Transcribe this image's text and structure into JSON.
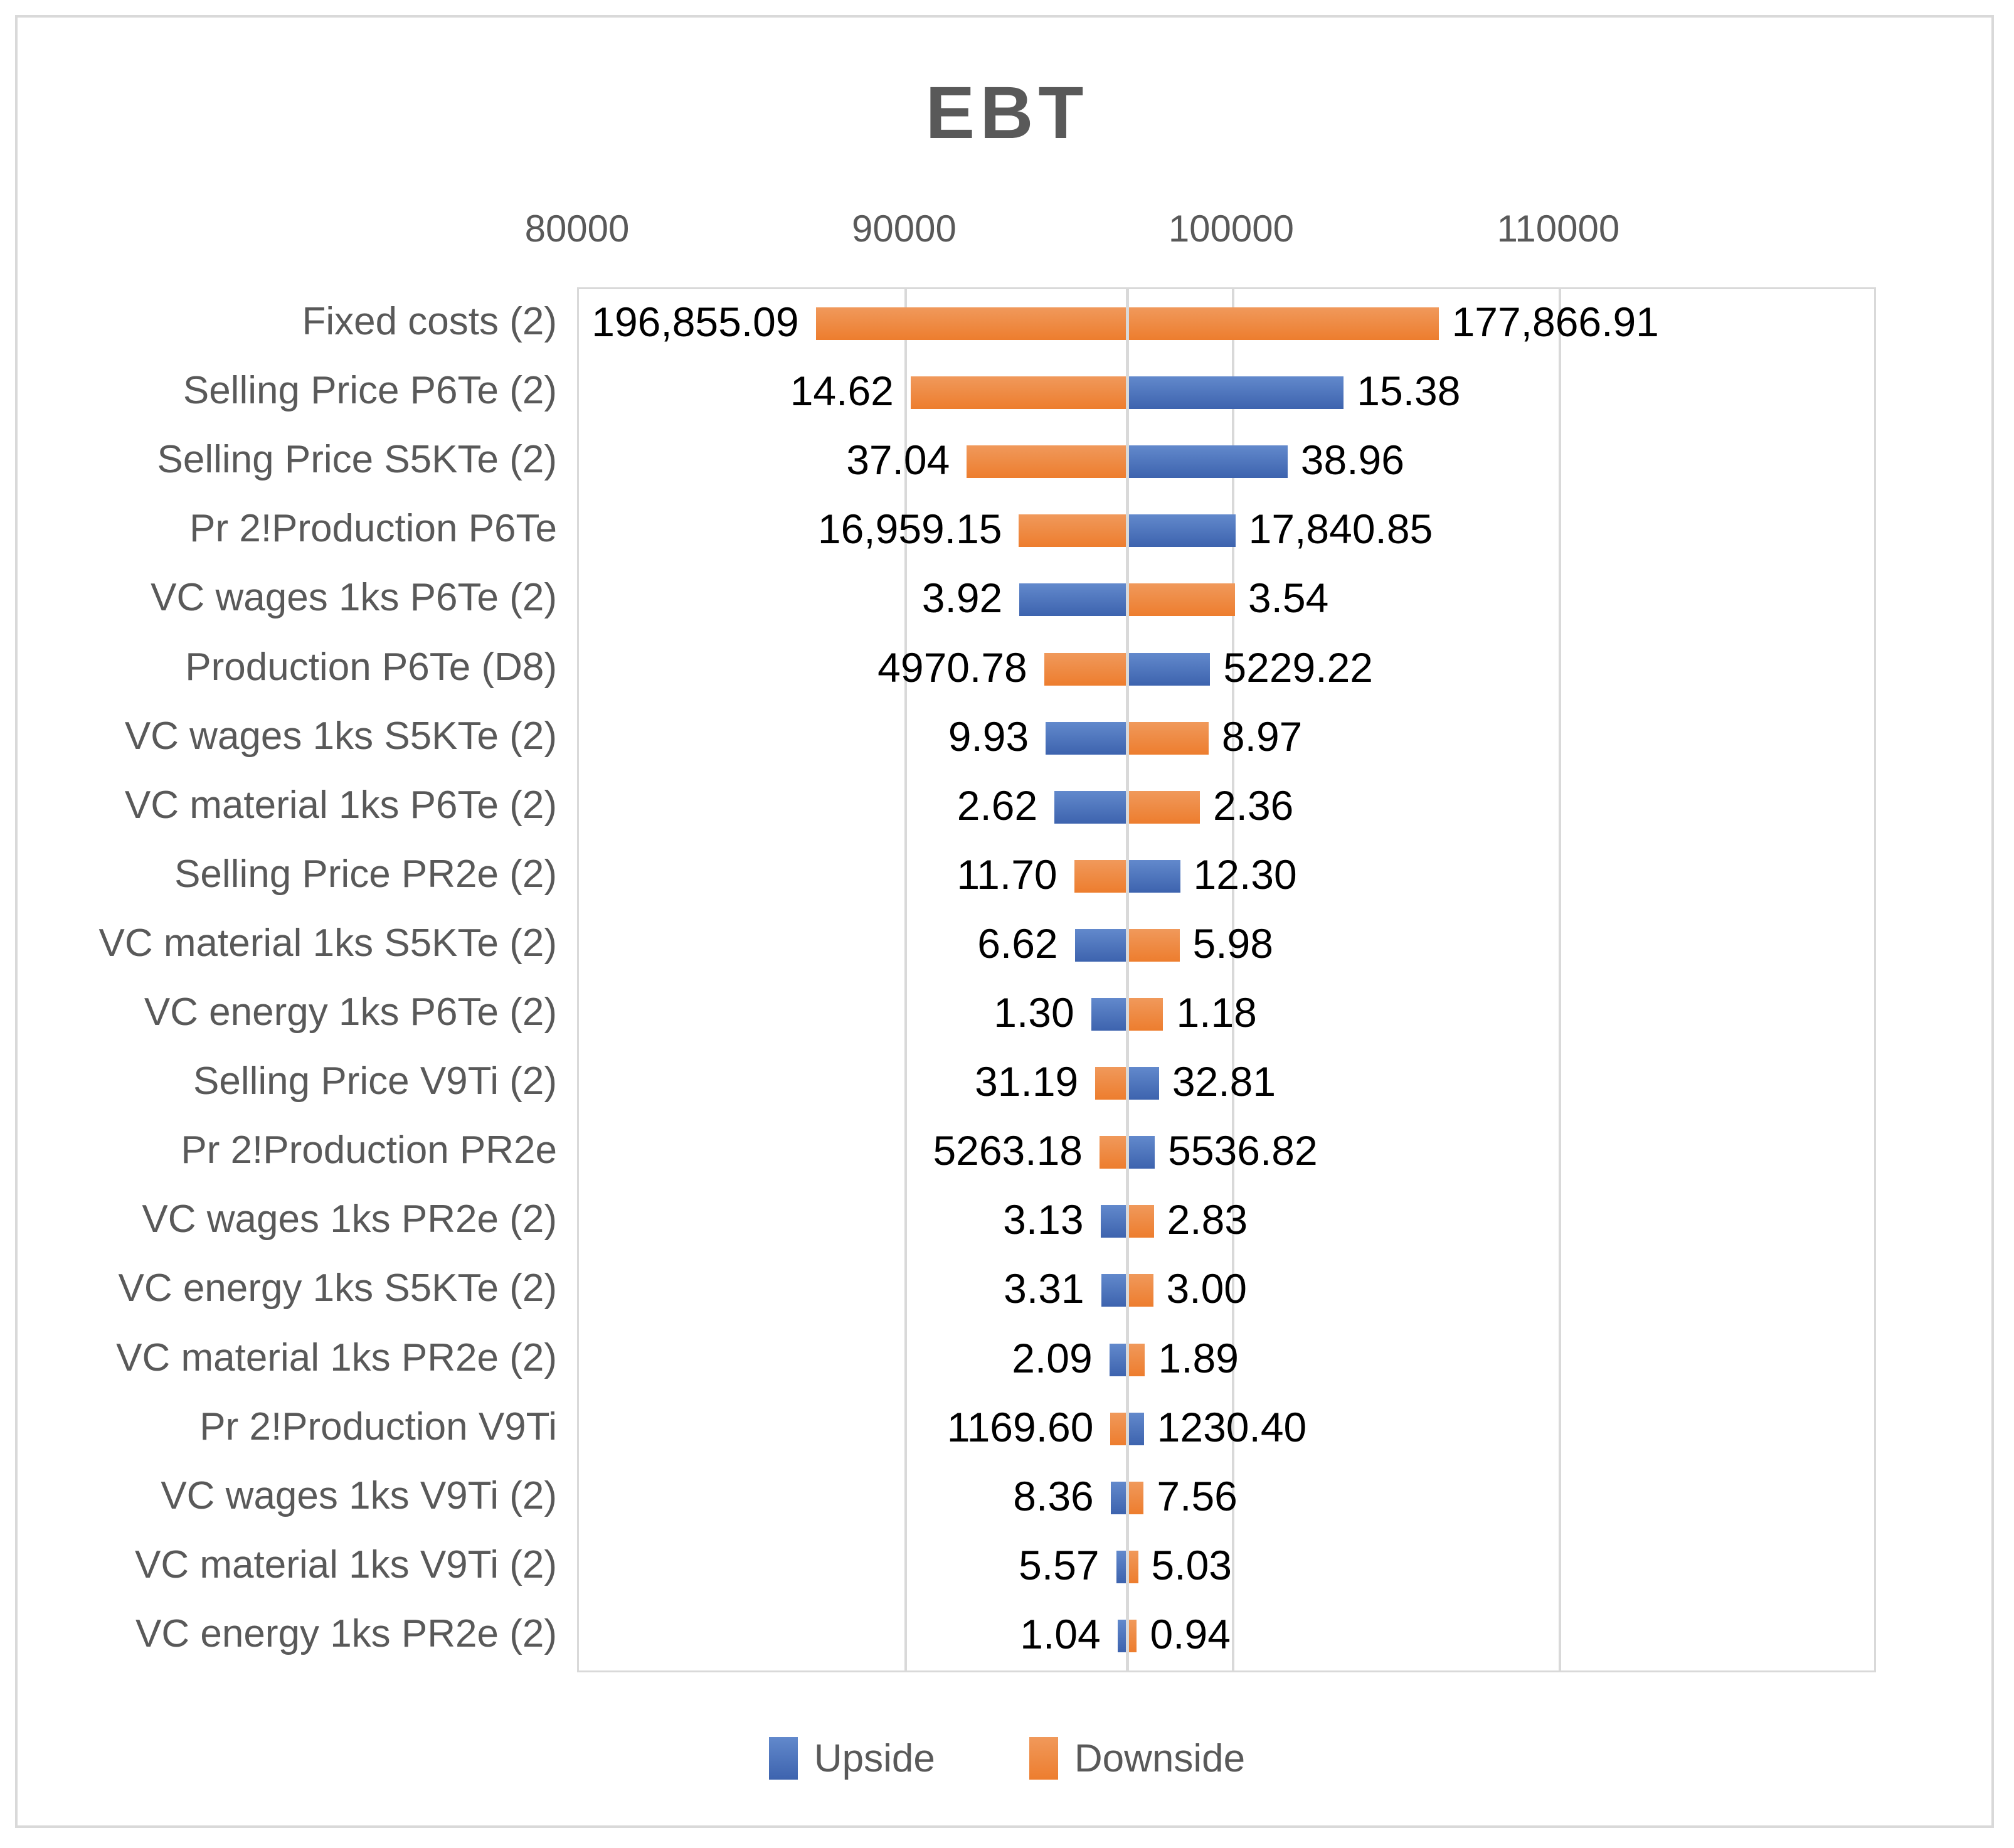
{
  "title": "EBT",
  "axis": {
    "min": 80000,
    "max": 119600,
    "ticks": [
      {
        "label": "80000",
        "value": 80000
      },
      {
        "label": "90000",
        "value": 90000
      },
      {
        "label": "100000",
        "value": 100000
      },
      {
        "label": "110000",
        "value": 110000
      }
    ],
    "gridlines": [
      90000,
      100000,
      110000
    ]
  },
  "legend": {
    "items": [
      {
        "label": "Upside",
        "series": "Upside"
      },
      {
        "label": "Downside",
        "series": "Downside"
      }
    ]
  },
  "colors": {
    "upside_top": "#6289cc",
    "upside_bottom": "#3d63ae",
    "downside_top": "#f0995b",
    "downside_bottom": "#ed7d2e",
    "gridline": "#d9d9d9",
    "axis_text": "#595959",
    "data_label": "#000000"
  },
  "chart_data": {
    "type": "bar",
    "subtype": "tornado",
    "title": "EBT",
    "x_range": [
      80000,
      119600
    ],
    "tick_labels": [
      "80000",
      "90000",
      "100000",
      "110000"
    ],
    "base_value": 96762,
    "grid": true,
    "legend_position": "bottom",
    "series_names": [
      "Upside",
      "Downside"
    ],
    "rows": [
      {
        "category": "Fixed costs (2)",
        "left": {
          "series": "Downside",
          "label": "196,855.09",
          "value": 87241
        },
        "right": {
          "series": "Downside",
          "label": "177,866.91",
          "value": 106283
        }
      },
      {
        "category": "Selling Price P6Te (2)",
        "left": {
          "series": "Downside",
          "label": "14.62",
          "value": 90142
        },
        "right": {
          "series": "Upside",
          "label": "15.38",
          "value": 103382
        }
      },
      {
        "category": "Selling Price S5KTe (2)",
        "left": {
          "series": "Downside",
          "label": "37.04",
          "value": 91858
        },
        "right": {
          "series": "Upside",
          "label": "38.96",
          "value": 101666
        }
      },
      {
        "category": "Pr 2!Production P6Te",
        "left": {
          "series": "Downside",
          "label": "16,959.15",
          "value": 93452
        },
        "right": {
          "series": "Upside",
          "label": "17,840.85",
          "value": 100072
        }
      },
      {
        "category": "VC wages 1ks P6Te (2)",
        "left": {
          "series": "Upside",
          "label": "3.92",
          "value": 93467
        },
        "right": {
          "series": "Downside",
          "label": "3.54",
          "value": 100057
        }
      },
      {
        "category": "Production P6Te (D8)",
        "left": {
          "series": "Downside",
          "label": "4970.78",
          "value": 94224
        },
        "right": {
          "series": "Upside",
          "label": "5229.22",
          "value": 99300
        }
      },
      {
        "category": "VC wages 1ks S5KTe (2)",
        "left": {
          "series": "Upside",
          "label": "9.93",
          "value": 94272
        },
        "right": {
          "series": "Downside",
          "label": "8.97",
          "value": 99252
        }
      },
      {
        "category": "VC material 1ks P6Te (2)",
        "left": {
          "series": "Upside",
          "label": "2.62",
          "value": 94540
        },
        "right": {
          "series": "Downside",
          "label": "2.36",
          "value": 98984
        }
      },
      {
        "category": "Selling Price PR2e (2)",
        "left": {
          "series": "Downside",
          "label": "11.70",
          "value": 95142
        },
        "right": {
          "series": "Upside",
          "label": "12.30",
          "value": 98382
        }
      },
      {
        "category": "VC material 1ks S5KTe (2)",
        "left": {
          "series": "Upside",
          "label": "6.62",
          "value": 95162
        },
        "right": {
          "series": "Downside",
          "label": "5.98",
          "value": 98362
        }
      },
      {
        "category": "VC energy 1ks P6Te (2)",
        "left": {
          "series": "Upside",
          "label": "1.30",
          "value": 95662
        },
        "right": {
          "series": "Downside",
          "label": "1.18",
          "value": 97862
        }
      },
      {
        "category": "Selling Price V9Ti (2)",
        "left": {
          "series": "Downside",
          "label": "31.19",
          "value": 95787
        },
        "right": {
          "series": "Upside",
          "label": "32.81",
          "value": 97737
        }
      },
      {
        "category": "Pr 2!Production PR2e",
        "left": {
          "series": "Downside",
          "label": "5263.18",
          "value": 95917
        },
        "right": {
          "series": "Upside",
          "label": "5536.82",
          "value": 97607
        }
      },
      {
        "category": "VC wages 1ks PR2e (2)",
        "left": {
          "series": "Upside",
          "label": "3.13",
          "value": 95947
        },
        "right": {
          "series": "Downside",
          "label": "2.83",
          "value": 97577
        }
      },
      {
        "category": "VC energy 1ks S5KTe (2)",
        "left": {
          "series": "Upside",
          "label": "3.31",
          "value": 95967
        },
        "right": {
          "series": "Downside",
          "label": "3.00",
          "value": 97557
        }
      },
      {
        "category": "VC material 1ks PR2e (2)",
        "left": {
          "series": "Upside",
          "label": "2.09",
          "value": 96217
        },
        "right": {
          "series": "Downside",
          "label": "1.89",
          "value": 97307
        }
      },
      {
        "category": "Pr 2!Production V9Ti",
        "left": {
          "series": "Downside",
          "label": "1169.60",
          "value": 96252
        },
        "right": {
          "series": "Upside",
          "label": "1230.40",
          "value": 97272
        }
      },
      {
        "category": "VC wages 1ks V9Ti (2)",
        "left": {
          "series": "Upside",
          "label": "8.36",
          "value": 96257
        },
        "right": {
          "series": "Downside",
          "label": "7.56",
          "value": 97267
        }
      },
      {
        "category": "VC material 1ks V9Ti (2)",
        "left": {
          "series": "Upside",
          "label": "5.57",
          "value": 96427
        },
        "right": {
          "series": "Downside",
          "label": "5.03",
          "value": 97097
        }
      },
      {
        "category": "VC energy 1ks PR2e (2)",
        "left": {
          "series": "Upside",
          "label": "1.04",
          "value": 96467
        },
        "right": {
          "series": "Downside",
          "label": "0.94",
          "value": 97057
        }
      }
    ]
  }
}
